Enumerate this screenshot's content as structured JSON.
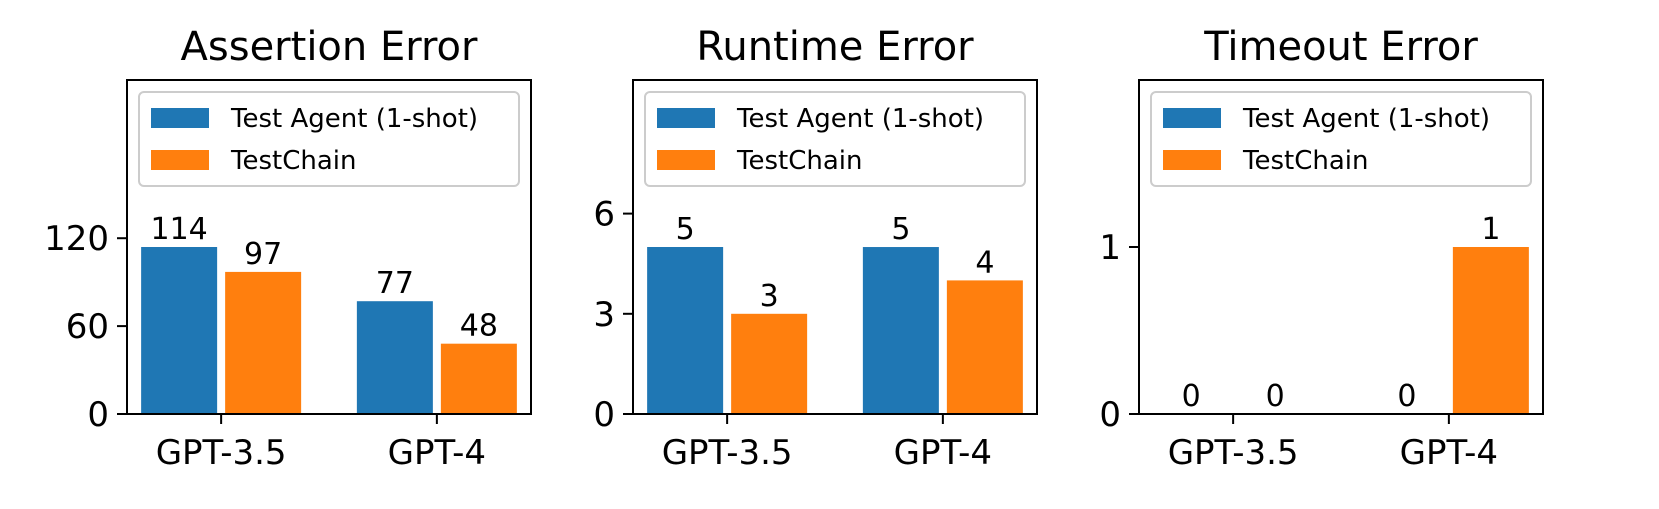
{
  "chart_data": [
    {
      "type": "bar",
      "title": "Assertion Error",
      "categories": [
        "GPT-3.5",
        "GPT-4"
      ],
      "series": [
        {
          "name": "Test Agent (1-shot)",
          "values": [
            114,
            77
          ],
          "color": "#1f77b4"
        },
        {
          "name": "TestChain",
          "values": [
            97,
            48
          ],
          "color": "#ff7f0e"
        }
      ],
      "yticks": [
        0,
        60,
        120
      ],
      "ylim": [
        0,
        228
      ],
      "legend": "upper",
      "grid": false
    },
    {
      "type": "bar",
      "title": "Runtime Error",
      "categories": [
        "GPT-3.5",
        "GPT-4"
      ],
      "series": [
        {
          "name": "Test Agent (1-shot)",
          "values": [
            5,
            4.999
          ],
          "color": "#1f77b4"
        },
        {
          "name": "TestChain",
          "values": [
            3,
            4
          ],
          "color": "#ff7f0e"
        }
      ],
      "yticks": [
        0,
        3,
        6
      ],
      "ylim": [
        0,
        10
      ],
      "legend": "upper",
      "grid": false
    },
    {
      "type": "bar",
      "title": "Timeout Error",
      "categories": [
        "GPT-3.5",
        "GPT-4"
      ],
      "series": [
        {
          "name": "Test Agent (1-shot)",
          "values": [
            0,
            0
          ],
          "color": "#1f77b4"
        },
        {
          "name": "TestChain",
          "values": [
            0,
            1
          ],
          "color": "#ff7f0e"
        }
      ],
      "yticks": [
        0,
        1
      ],
      "ylim": [
        0,
        2
      ],
      "legend": "upper",
      "grid": false
    }
  ]
}
